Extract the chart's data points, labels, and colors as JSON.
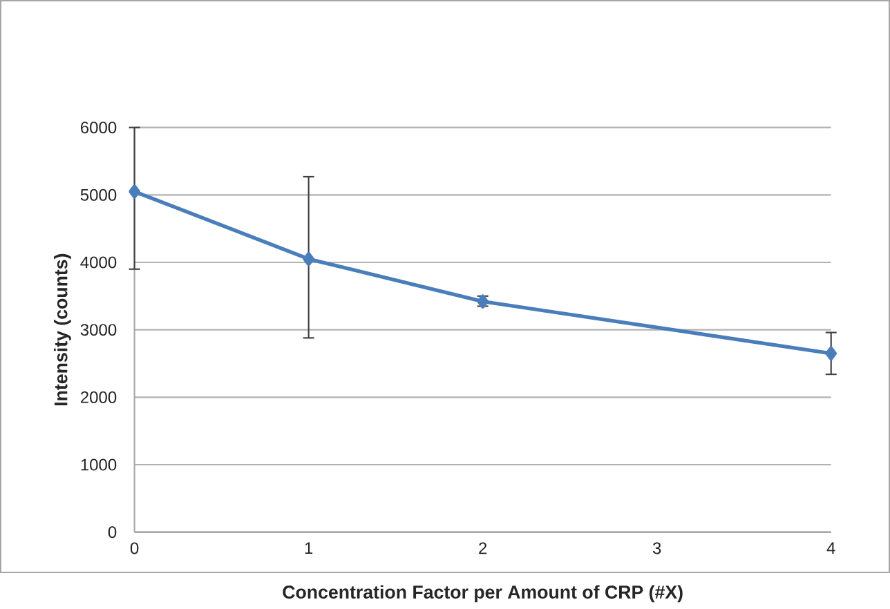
{
  "chart_data": {
    "type": "line",
    "xlabel": "Concentration Factor per Amount of CRP (#X)",
    "ylabel": "Intensity (counts)",
    "xlim": [
      0,
      4
    ],
    "xticks": [
      0,
      1,
      2,
      3,
      4
    ],
    "ylim": [
      0,
      6000
    ],
    "yticks": [
      0,
      1000,
      2000,
      3000,
      4000,
      5000,
      6000
    ],
    "grid": "y",
    "marker": "diamond",
    "line_style": "solid",
    "series": [
      {
        "color": "#4a7ebb",
        "x": [
          0,
          1,
          2,
          4
        ],
        "values": [
          5050,
          4050,
          3420,
          2650
        ],
        "errors": [
          [
            3900,
            6000
          ],
          [
            2880,
            5270
          ],
          [
            3350,
            3500
          ],
          [
            2340,
            2960
          ]
        ]
      }
    ]
  }
}
